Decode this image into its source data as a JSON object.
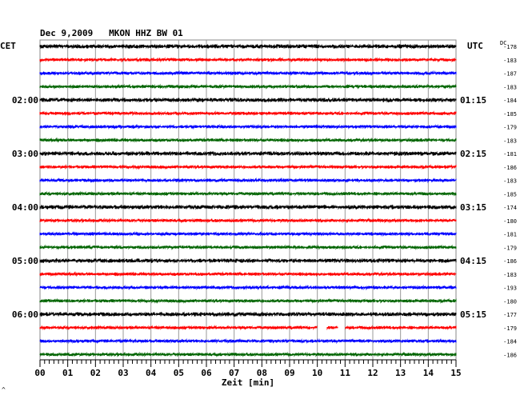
{
  "header": {
    "title": "Dec 9,2009   MKON HHZ BW 01",
    "left_zone": "CET",
    "right_zone": "UTC",
    "dc_label": "DC"
  },
  "footer": {
    "xlabel": "Zeit [min]",
    "corner_mark": "^"
  },
  "chart_data": {
    "type": "line",
    "title": "Dec 9,2009   MKON HHZ BW 01",
    "xlabel": "Zeit [min]",
    "ylabel": "",
    "x_ticks": [
      "00",
      "01",
      "02",
      "03",
      "04",
      "05",
      "06",
      "07",
      "08",
      "09",
      "10",
      "11",
      "12",
      "13",
      "14",
      "15"
    ],
    "xlim": [
      0,
      15
    ],
    "grid": true,
    "trace_colors": [
      "#000000",
      "#ff0000",
      "#0000ff",
      "#006400"
    ],
    "left_time_labels": [
      {
        "row": 4,
        "label": "02:00"
      },
      {
        "row": 8,
        "label": "03:00"
      },
      {
        "row": 12,
        "label": "04:00"
      },
      {
        "row": 16,
        "label": "05:00"
      },
      {
        "row": 20,
        "label": "06:00"
      }
    ],
    "right_time_labels": [
      {
        "row": 4,
        "label": "01:15"
      },
      {
        "row": 8,
        "label": "02:15"
      },
      {
        "row": 12,
        "label": "03:15"
      },
      {
        "row": 16,
        "label": "04:15"
      },
      {
        "row": 20,
        "label": "05:15"
      }
    ],
    "dc_offsets": [
      "-178",
      "-183",
      "-187",
      "-183",
      "-184",
      "-185",
      "-179",
      "-183",
      "-181",
      "-186",
      "-183",
      "-185",
      "-174",
      "-180",
      "-181",
      "-179",
      "-186",
      "-183",
      "-193",
      "-180",
      "-177",
      "-179",
      "-184",
      "-186"
    ],
    "gaps": [
      {
        "row": 21,
        "from_min": 10.0,
        "to_min": 10.35
      },
      {
        "row": 21,
        "from_min": 10.75,
        "to_min": 11.0
      }
    ]
  }
}
